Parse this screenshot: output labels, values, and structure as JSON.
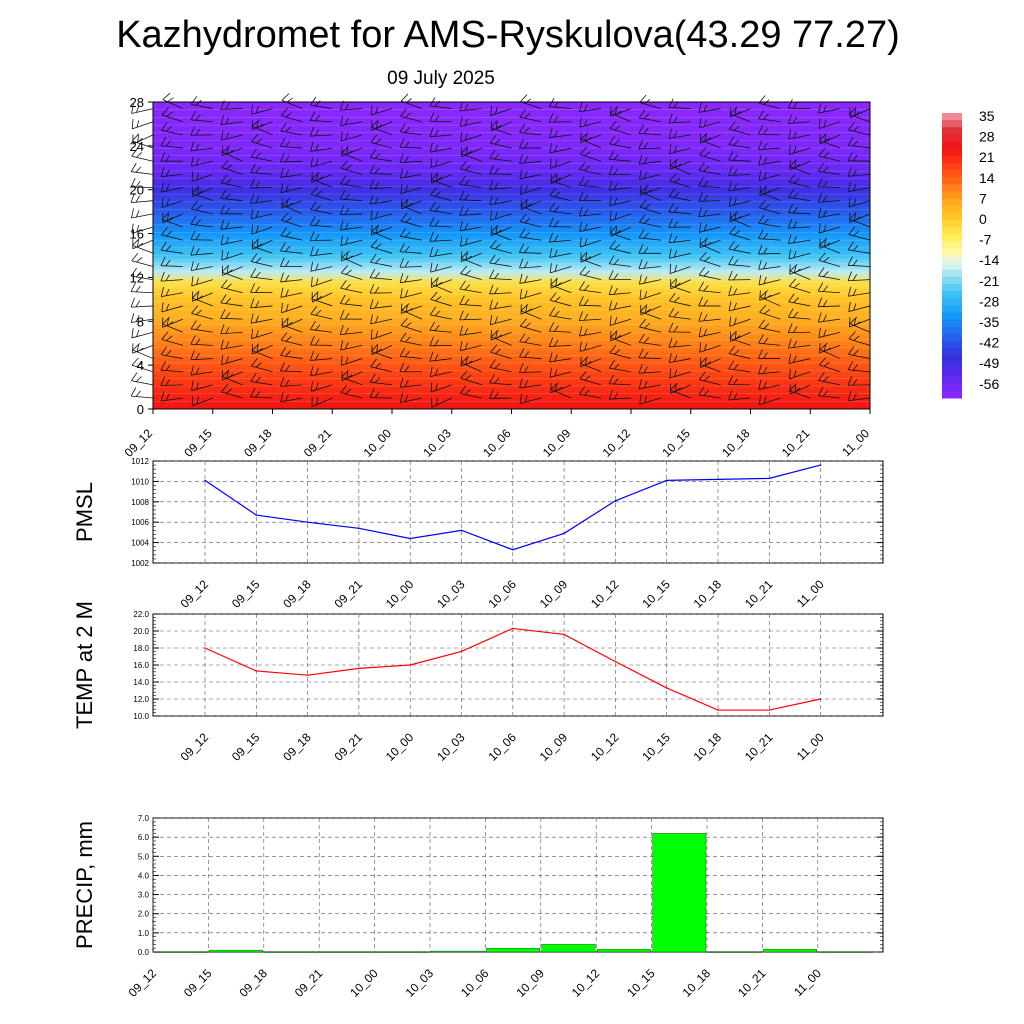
{
  "title": "Kazhydromet for AMS-Ryskulova(43.29 77.27)",
  "subtitle": "09 July 2025",
  "time_labels": [
    "09_12",
    "09_15",
    "09_18",
    "09_21",
    "10_00",
    "10_03",
    "10_06",
    "10_09",
    "10_12",
    "10_15",
    "10_18",
    "10_21",
    "11_00"
  ],
  "colors": {
    "pmsl_line": "#0000ff",
    "temp_line": "#ff0000",
    "precip_bar": "#00ff00"
  },
  "chart_data": [
    {
      "type": "heatmap",
      "title": "",
      "ylim": [
        0,
        28
      ],
      "yticks": [
        0,
        4,
        8,
        12,
        16,
        20,
        24,
        28
      ],
      "x_tick_labels": [
        "09_12",
        "09_15",
        "09_18",
        "09_21",
        "10_00",
        "10_03",
        "10_06",
        "10_09",
        "10_12",
        "10_15",
        "10_18",
        "10_21",
        "11_00"
      ],
      "colorbar_labels": [
        "35",
        "28",
        "21",
        "14",
        "7",
        "0",
        "-7",
        "-14",
        "-21",
        "-28",
        "-35",
        "-42",
        "-49",
        "-56"
      ],
      "colorbar_range": [
        -60,
        38
      ],
      "temperature_profile": [
        {
          "h": 0,
          "t": 26
        },
        {
          "h": 2,
          "t": 22
        },
        {
          "h": 4,
          "t": 17
        },
        {
          "h": 6,
          "t": 12
        },
        {
          "h": 8,
          "t": 7
        },
        {
          "h": 10,
          "t": 3
        },
        {
          "h": 11.5,
          "t": -2
        },
        {
          "h": 12.5,
          "t": -16
        },
        {
          "h": 14,
          "t": -24
        },
        {
          "h": 16,
          "t": -32
        },
        {
          "h": 18,
          "t": -40
        },
        {
          "h": 20,
          "t": -48
        },
        {
          "h": 22,
          "t": -55
        },
        {
          "h": 24,
          "t": -58
        },
        {
          "h": 28,
          "t": -60
        }
      ],
      "wind_barbs": "present"
    },
    {
      "type": "line",
      "ylabel": "PMSL",
      "ylim": [
        1002,
        1012
      ],
      "yticks": [
        "1002",
        "1004",
        "1006",
        "1008",
        "1010",
        "1012"
      ],
      "grid": true,
      "x": [
        "09_12",
        "09_15",
        "09_18",
        "09_21",
        "10_00",
        "10_03",
        "10_06",
        "10_09",
        "10_12",
        "10_15",
        "10_18",
        "10_21",
        "11_00"
      ],
      "values": [
        1010.1,
        1006.7,
        1006.0,
        1005.4,
        1004.4,
        1005.2,
        1003.3,
        1004.9,
        1008.1,
        1010.1,
        1010.2,
        1010.3,
        1011.6
      ]
    },
    {
      "type": "line",
      "ylabel": "TEMP at 2 M",
      "ylim": [
        10.0,
        22.0
      ],
      "yticks": [
        "10.0",
        "12.0",
        "14.0",
        "16.0",
        "18.0",
        "20.0",
        "22.0"
      ],
      "grid": true,
      "x": [
        "09_12",
        "09_15",
        "09_18",
        "09_21",
        "10_00",
        "10_03",
        "10_06",
        "10_09",
        "10_12",
        "10_15",
        "10_18",
        "10_21",
        "11_00"
      ],
      "values": [
        18.0,
        15.3,
        14.8,
        15.6,
        16.0,
        17.6,
        20.3,
        19.6,
        16.4,
        13.3,
        10.7,
        10.7,
        12.0
      ]
    },
    {
      "type": "bar",
      "ylabel": "PRECIP, mm",
      "ylim": [
        0.0,
        7.0
      ],
      "yticks": [
        "0.0",
        "1.0",
        "2.0",
        "3.0",
        "4.0",
        "5.0",
        "6.0",
        "7.0"
      ],
      "grid": true,
      "categories": [
        "09_12",
        "09_15",
        "09_18",
        "09_21",
        "10_00",
        "10_03",
        "10_06",
        "10_09",
        "10_12",
        "10_15",
        "10_18",
        "10_21",
        "11_00"
      ],
      "values": [
        0.0,
        0.1,
        0.0,
        0.0,
        0.0,
        0.05,
        0.2,
        0.4,
        0.15,
        6.2,
        0.0,
        0.15,
        0.0
      ]
    }
  ]
}
